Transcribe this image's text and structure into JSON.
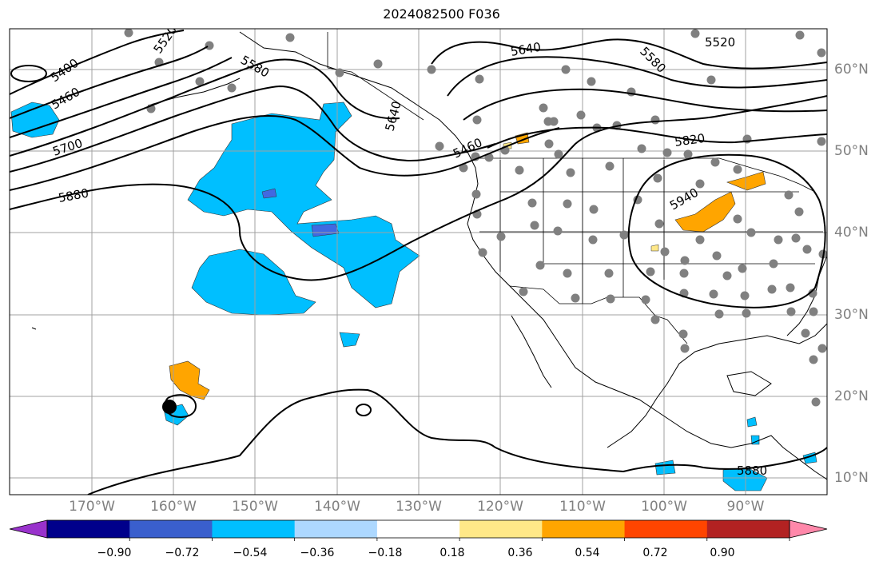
{
  "title": "2024082500 F036",
  "map": {
    "lon_labels": [
      "170°W",
      "160°W",
      "150°W",
      "140°W",
      "130°W",
      "120°W",
      "110°W",
      "100°W",
      "90°W"
    ],
    "lat_labels": [
      "60°N",
      "50°N",
      "40°N",
      "30°N",
      "20°N",
      "10°N"
    ],
    "contour_labels": [
      "5400",
      "5460",
      "5520",
      "5580",
      "5640",
      "5700",
      "5820",
      "5880",
      "5940",
      "5520",
      "5580",
      "5640",
      "5460",
      "5880"
    ],
    "contour_color": "#000000",
    "shading_colors": {
      "neg_light": "#00bfff",
      "neg_mid": "#4169e1",
      "pos_light": "#ffa500",
      "pos_pale": "#ffe888"
    },
    "station_marker_color": "#808080"
  },
  "colorbar": {
    "ticks": [
      "−0.90",
      "−0.72",
      "−0.54",
      "−0.36",
      "−0.18",
      "0.18",
      "0.36",
      "0.54",
      "0.72",
      "0.90"
    ],
    "colors": [
      "#9932cc",
      "#00008b",
      "#3a5fcd",
      "#00bfff",
      "#add8ff",
      "#ffffff",
      "#ffe888",
      "#ffa500",
      "#ff4500",
      "#b22222",
      "#ff88aa"
    ]
  }
}
